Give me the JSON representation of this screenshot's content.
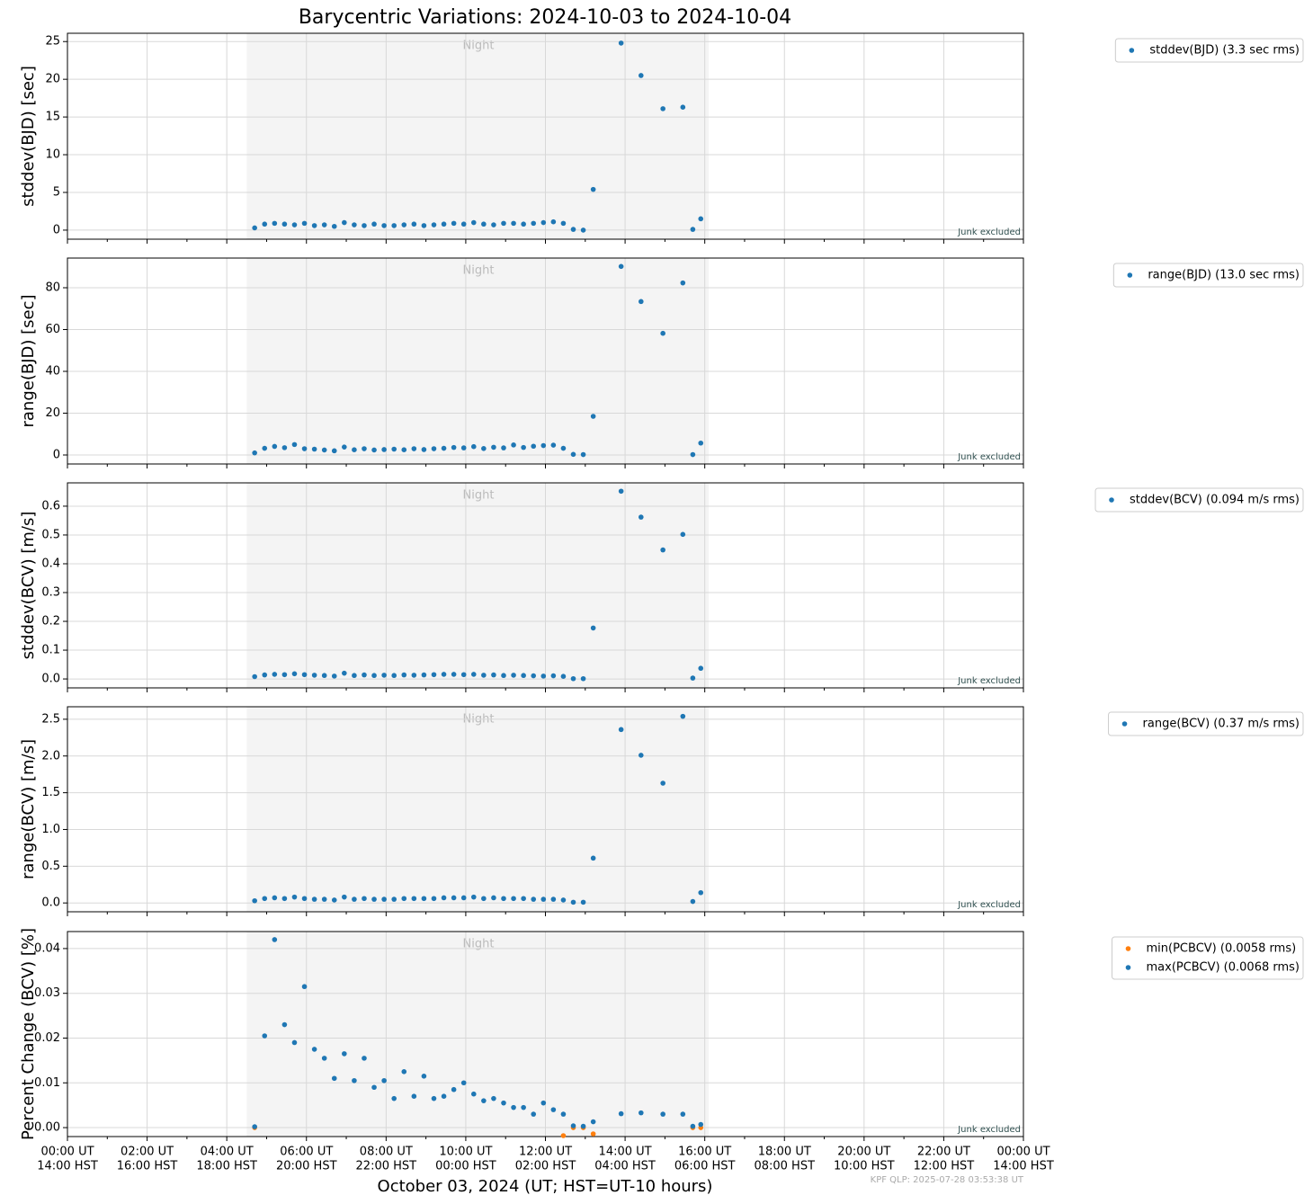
{
  "title": "Barycentric Variations: 2024-10-03 to 2024-10-04",
  "xlabel": "October 03, 2024 (UT; HST=UT-10 hours)",
  "footer": "KPF QLP: 2025-07-28 03:53:38 UT",
  "note": "Junk excluded",
  "night": {
    "label": "Night",
    "start": 4.5,
    "end": 16.1
  },
  "xlim": [
    0,
    24
  ],
  "xticks": [
    {
      "value": 0,
      "label": "00:00 UT",
      "label2": "14:00 HST"
    },
    {
      "value": 2,
      "label": "02:00 UT",
      "label2": "16:00 HST"
    },
    {
      "value": 4,
      "label": "04:00 UT",
      "label2": "18:00 HST"
    },
    {
      "value": 6,
      "label": "06:00 UT",
      "label2": "20:00 HST"
    },
    {
      "value": 8,
      "label": "08:00 UT",
      "label2": "22:00 HST"
    },
    {
      "value": 10,
      "label": "10:00 UT",
      "label2": "00:00 HST"
    },
    {
      "value": 12,
      "label": "12:00 UT",
      "label2": "02:00 HST"
    },
    {
      "value": 14,
      "label": "14:00 UT",
      "label2": "04:00 HST"
    },
    {
      "value": 16,
      "label": "16:00 UT",
      "label2": "06:00 HST"
    },
    {
      "value": 18,
      "label": "18:00 UT",
      "label2": "08:00 HST"
    },
    {
      "value": 20,
      "label": "20:00 UT",
      "label2": "10:00 HST"
    },
    {
      "value": 22,
      "label": "22:00 UT",
      "label2": "12:00 HST"
    },
    {
      "value": 24,
      "label": "00:00 UT",
      "label2": "14:00 HST"
    }
  ],
  "xminorticks": [
    1,
    3,
    5,
    7,
    9,
    11,
    13,
    15,
    17,
    19,
    21,
    23
  ],
  "x": [
    4.7,
    4.95,
    5.2,
    5.45,
    5.7,
    5.95,
    6.2,
    6.45,
    6.7,
    6.95,
    7.2,
    7.45,
    7.7,
    7.95,
    8.2,
    8.45,
    8.7,
    8.95,
    9.2,
    9.45,
    9.7,
    9.95,
    10.2,
    10.45,
    10.7,
    10.95,
    11.2,
    11.45,
    11.7,
    11.95,
    12.2,
    12.45,
    12.7,
    12.95,
    13.2,
    13.9,
    14.4,
    14.95,
    15.45,
    15.7,
    15.9
  ],
  "chart_data": [
    {
      "type": "scatter",
      "ylabel": "stddev(BJD) [sec]",
      "ylim": [
        -1.2,
        26.1
      ],
      "yticks": [
        0,
        5,
        10,
        15,
        20,
        25
      ],
      "grid": true,
      "series": [
        {
          "name": "stddev(BJD) (3.3 sec rms)",
          "color": "#1f77b4",
          "values": [
            0.3,
            0.8,
            0.9,
            0.8,
            0.7,
            0.9,
            0.6,
            0.7,
            0.5,
            1.0,
            0.7,
            0.6,
            0.8,
            0.6,
            0.6,
            0.7,
            0.8,
            0.6,
            0.7,
            0.8,
            0.9,
            0.8,
            1.0,
            0.8,
            0.7,
            0.9,
            0.9,
            0.8,
            0.9,
            1.0,
            1.1,
            0.9,
            0.1,
            0.0,
            5.4,
            24.8,
            20.5,
            16.1,
            16.3,
            0.1,
            1.5
          ]
        }
      ]
    },
    {
      "type": "scatter",
      "ylabel": "range(BJD) [sec]",
      "ylim": [
        -4.3,
        94.2
      ],
      "yticks": [
        0,
        20,
        40,
        60,
        80
      ],
      "grid": true,
      "series": [
        {
          "name": "range(BJD) (13.0 sec rms)",
          "color": "#1f77b4",
          "values": [
            1.0,
            3.2,
            4.1,
            3.5,
            5.0,
            3.0,
            2.8,
            2.4,
            2.0,
            3.8,
            2.5,
            3.0,
            2.4,
            2.6,
            2.8,
            2.5,
            3.0,
            2.6,
            3.0,
            3.2,
            3.6,
            3.4,
            4.0,
            3.1,
            3.7,
            3.4,
            4.8,
            3.6,
            4.2,
            4.5,
            4.7,
            3.2,
            0.3,
            0.2,
            18.5,
            90.2,
            73.4,
            58.2,
            82.3,
            0.2,
            5.7
          ]
        }
      ]
    },
    {
      "type": "scatter",
      "ylabel": "stddev(BCV) [m/s]",
      "ylim": [
        -0.031,
        0.681
      ],
      "yticks": [
        {
          "value": 0,
          "label": "0.0"
        },
        0.1,
        0.2,
        0.3,
        0.4,
        0.5,
        0.6
      ],
      "grid": true,
      "series": [
        {
          "name": "stddev(BCV) (0.094 m/s rms)",
          "color": "#1f77b4",
          "values": [
            0.008,
            0.014,
            0.016,
            0.015,
            0.018,
            0.015,
            0.013,
            0.012,
            0.01,
            0.02,
            0.012,
            0.014,
            0.012,
            0.013,
            0.012,
            0.014,
            0.013,
            0.014,
            0.015,
            0.016,
            0.016,
            0.015,
            0.016,
            0.013,
            0.014,
            0.012,
            0.013,
            0.012,
            0.011,
            0.01,
            0.011,
            0.009,
            0.001,
            0.001,
            0.177,
            0.652,
            0.562,
            0.448,
            0.502,
            0.003,
            0.037
          ]
        }
      ]
    },
    {
      "type": "scatter",
      "ylabel": "range(BCV) [m/s]",
      "ylim": [
        -0.12,
        2.67
      ],
      "yticks": [
        {
          "value": 0,
          "label": "0.0"
        },
        0.5,
        {
          "value": 1,
          "label": "1.0"
        },
        1.5,
        {
          "value": 2,
          "label": "2.0"
        },
        2.5
      ],
      "grid": true,
      "series": [
        {
          "name": "range(BCV) (0.37 m/s rms)",
          "color": "#1f77b4",
          "values": [
            0.03,
            0.06,
            0.07,
            0.06,
            0.08,
            0.06,
            0.05,
            0.05,
            0.04,
            0.08,
            0.05,
            0.06,
            0.05,
            0.05,
            0.05,
            0.06,
            0.06,
            0.06,
            0.06,
            0.07,
            0.07,
            0.07,
            0.08,
            0.06,
            0.07,
            0.06,
            0.06,
            0.06,
            0.05,
            0.05,
            0.05,
            0.04,
            0.01,
            0.01,
            0.61,
            2.36,
            2.01,
            1.63,
            2.54,
            0.02,
            0.14
          ]
        }
      ]
    },
    {
      "type": "scatter",
      "ylabel": "Percent Change (BCV) [%]",
      "ylim": [
        -0.002,
        0.0438
      ],
      "yticks": [
        {
          "value": 0,
          "label": "0.00"
        },
        {
          "value": 0.01,
          "label": "0.01"
        },
        {
          "value": 0.02,
          "label": "0.02"
        },
        {
          "value": 0.03,
          "label": "0.03"
        },
        {
          "value": 0.04,
          "label": "0.04"
        }
      ],
      "grid": true,
      "series": [
        {
          "name": "min(PCBCV) (0.0058 rms)",
          "color": "#ff7f0e",
          "values": [
            0,
            null,
            null,
            null,
            null,
            null,
            null,
            null,
            null,
            null,
            null,
            null,
            null,
            null,
            null,
            null,
            null,
            null,
            null,
            null,
            null,
            null,
            null,
            null,
            null,
            null,
            null,
            null,
            null,
            null,
            null,
            -0.0018,
            0,
            0,
            -0.0014,
            null,
            null,
            null,
            null,
            0,
            0
          ]
        },
        {
          "name": "max(PCBCV) (0.0068 rms)",
          "color": "#1f77b4",
          "values": [
            0.0002,
            0.0205,
            0.042,
            0.023,
            0.019,
            0.0315,
            0.0175,
            0.0155,
            0.011,
            0.0165,
            0.0105,
            0.0155,
            0.009,
            0.0105,
            0.0065,
            0.0125,
            0.007,
            0.0115,
            0.0065,
            0.007,
            0.0085,
            0.01,
            0.0075,
            0.006,
            0.0065,
            0.0055,
            0.0045,
            0.0045,
            0.003,
            0.0055,
            0.004,
            0.003,
            0.0004,
            0.0003,
            0.0013,
            0.0031,
            0.0033,
            0.003,
            0.003,
            0.0003,
            0.0007
          ]
        }
      ]
    }
  ]
}
